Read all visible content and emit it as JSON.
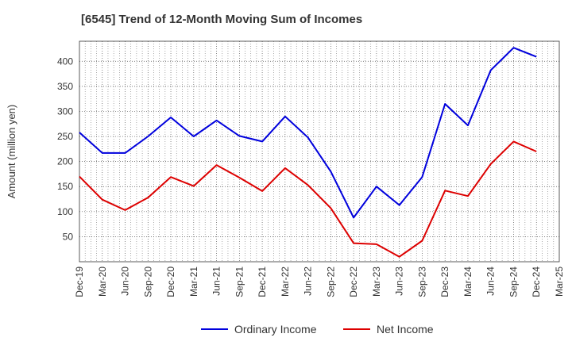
{
  "chart_data": {
    "type": "line",
    "title": "[6545]  Trend of 12-Month Moving Sum of Incomes",
    "xlabel": "",
    "ylabel": "Amount (million yen)",
    "ylim": [
      0,
      440
    ],
    "yticks": [
      50,
      100,
      150,
      200,
      250,
      300,
      350,
      400
    ],
    "grid": true,
    "legend_position": "bottom",
    "categories": [
      "Dec-19",
      "Mar-20",
      "Jun-20",
      "Sep-20",
      "Dec-20",
      "Mar-21",
      "Jun-21",
      "Sep-21",
      "Dec-21",
      "Mar-22",
      "Jun-22",
      "Sep-22",
      "Dec-22",
      "Mar-23",
      "Jun-23",
      "Sep-23",
      "Dec-23",
      "Mar-24",
      "Jun-24",
      "Sep-24",
      "Dec-24",
      "Mar-25"
    ],
    "series": [
      {
        "name": "Ordinary Income",
        "color": "#0000dd",
        "values": [
          258,
          217,
          217,
          250,
          288,
          250,
          282,
          251,
          240,
          290,
          248,
          180,
          88,
          150,
          113,
          169,
          315,
          272,
          382,
          427,
          409,
          null
        ]
      },
      {
        "name": "Net Income",
        "color": "#dd0000",
        "values": [
          170,
          124,
          103,
          128,
          169,
          151,
          193,
          168,
          141,
          187,
          153,
          107,
          37,
          35,
          10,
          42,
          142,
          131,
          195,
          240,
          220,
          null
        ]
      }
    ]
  }
}
